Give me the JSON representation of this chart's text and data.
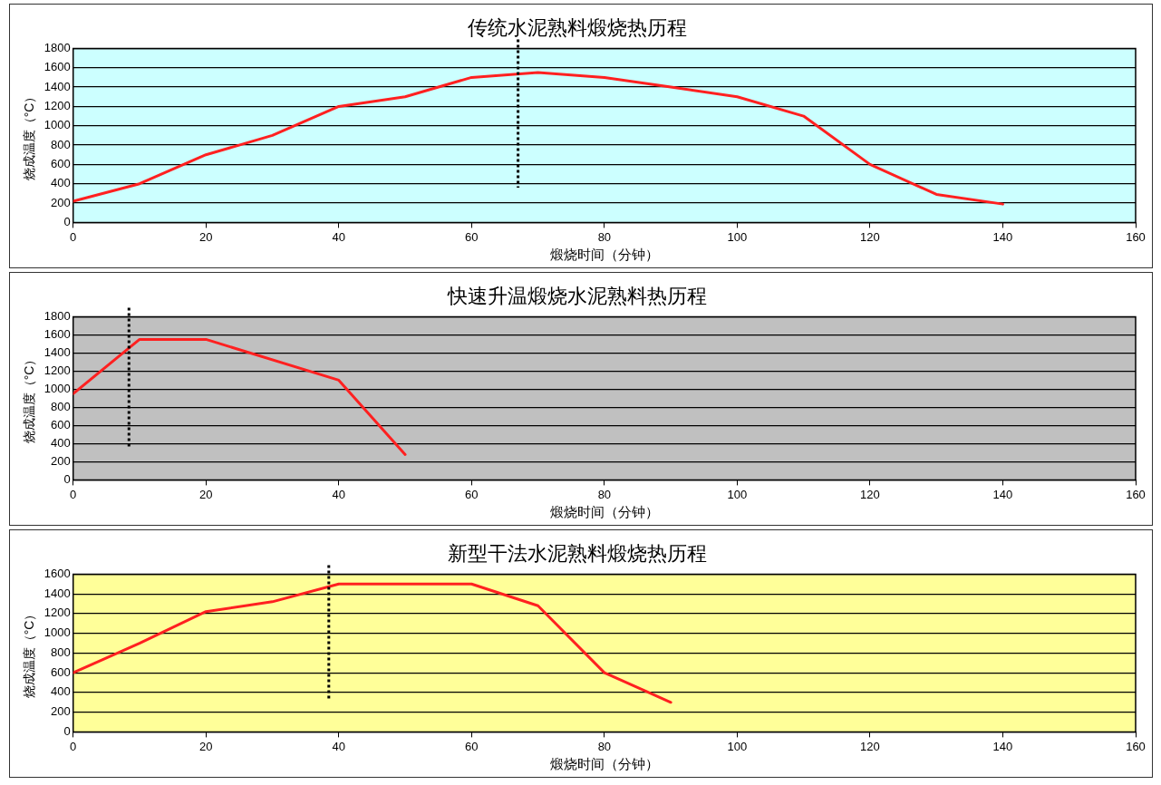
{
  "chart_data": [
    {
      "type": "line",
      "title": "传统水泥熟料煅烧热历程",
      "xlabel": "煅烧时间（分钟）",
      "ylabel": "烧成温度（°C）",
      "x": [
        0,
        10,
        20,
        30,
        40,
        50,
        60,
        70,
        80,
        90,
        100,
        110,
        120,
        130,
        140
      ],
      "series": [
        {
          "color": "#ff2020",
          "values": [
            220,
            400,
            700,
            900,
            1200,
            1300,
            1500,
            1550,
            1500,
            1400,
            1300,
            1100,
            600,
            290,
            190
          ]
        }
      ],
      "xlim": [
        0,
        160
      ],
      "xticks": [
        0,
        20,
        40,
        60,
        80,
        100,
        120,
        140,
        160
      ],
      "ylim": [
        0,
        1800
      ],
      "yticks": [
        0,
        200,
        400,
        600,
        800,
        1000,
        1200,
        1400,
        1600,
        1800
      ],
      "ref_lines": [
        {
          "axis": "x",
          "value": 67,
          "color": "#000000",
          "line_style": "dotted"
        }
      ],
      "grid": "y",
      "legend": false,
      "marker": "none",
      "line_style": "solid"
    },
    {
      "type": "line",
      "title": "快速升温煅烧水泥熟料热历程",
      "xlabel": "煅烧时间（分钟）",
      "ylabel": "烧成温度（°C）",
      "x": [
        0,
        10,
        20,
        40,
        50
      ],
      "series": [
        {
          "color": "#ff2020",
          "values": [
            950,
            1550,
            1550,
            1100,
            280
          ]
        }
      ],
      "xlim": [
        0,
        160
      ],
      "xticks": [
        0,
        20,
        40,
        60,
        80,
        100,
        120,
        140,
        160
      ],
      "ylim": [
        0,
        1800
      ],
      "yticks": [
        0,
        200,
        400,
        600,
        800,
        1000,
        1200,
        1400,
        1600,
        1800
      ],
      "ref_lines": [
        {
          "axis": "x",
          "value": 8.4,
          "color": "#000000",
          "line_style": "dotted"
        }
      ],
      "grid": "y",
      "legend": false,
      "marker": "none",
      "line_style": "solid"
    },
    {
      "type": "line",
      "title": "新型干法水泥熟料煅烧热历程",
      "xlabel": "煅烧时间（分钟）",
      "ylabel": "烧成温度（°C）",
      "x": [
        0,
        10,
        20,
        30,
        40,
        50,
        60,
        70,
        80,
        90
      ],
      "series": [
        {
          "color": "#ff2020",
          "values": [
            600,
            900,
            1220,
            1320,
            1500,
            1500,
            1500,
            1280,
            600,
            300
          ]
        }
      ],
      "xlim": [
        0,
        160
      ],
      "xticks": [
        0,
        20,
        40,
        60,
        80,
        100,
        120,
        140,
        160
      ],
      "ylim": [
        0,
        1600
      ],
      "yticks": [
        0,
        200,
        400,
        600,
        800,
        1000,
        1200,
        1400,
        1600
      ],
      "ref_lines": [
        {
          "axis": "x",
          "value": 38.5,
          "color": "#000000",
          "line_style": "dotted"
        }
      ],
      "grid": "y",
      "legend": false,
      "marker": "none",
      "line_style": "solid"
    }
  ]
}
